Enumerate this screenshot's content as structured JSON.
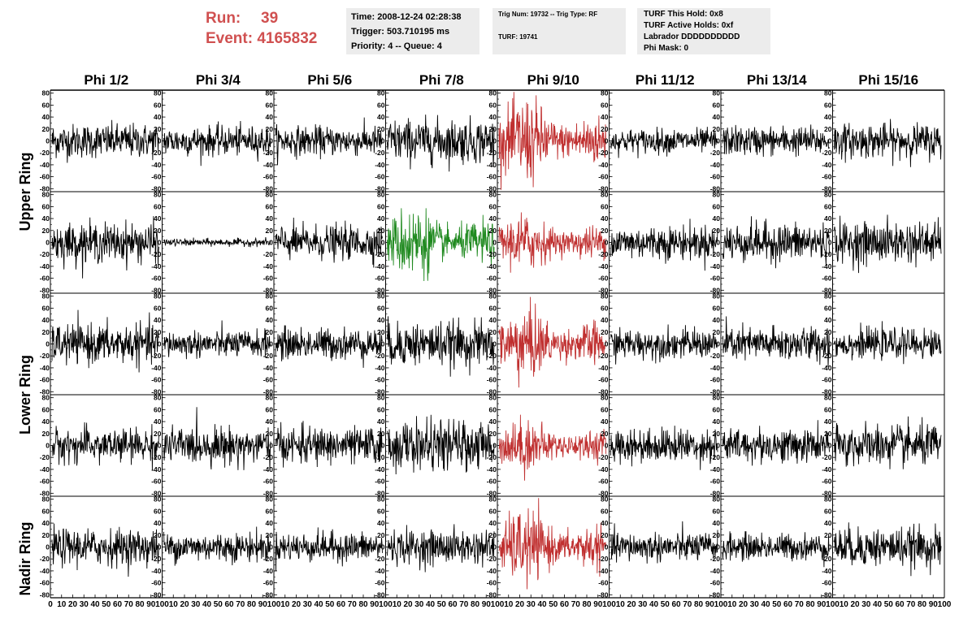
{
  "header": {
    "run_label": "Run:",
    "run_value": "39",
    "event_label": "Event:",
    "event_value": "4165832",
    "info_box_1": [
      "Time: 2008-12-24 02:28:38",
      "Trigger: 503.710195 ms",
      "Priority: 4 -- Queue: 4"
    ],
    "info_box_2": [
      "Trig Num: 19732 -- Trig Type: RF",
      "TURF: 19741"
    ],
    "info_box_3": [
      "TURF This Hold: 0x8",
      "TURF Active Holds: 0xf",
      "Labrador DDDDDDDDDD",
      "Phi Mask: 0"
    ]
  },
  "colors": {
    "run_text": "#d05050",
    "info_box_bg": "#ececec",
    "trace_normal": "#000000",
    "trace_triggered": "#c03030",
    "trace_highlight": "#208a20"
  },
  "chart_data": {
    "type": "line",
    "columns": [
      "Phi 1/2",
      "Phi 3/4",
      "Phi 5/6",
      "Phi 7/8",
      "Phi 9/10",
      "Phi 11/12",
      "Phi 13/14",
      "Phi 15/16"
    ],
    "ring_labels": [
      "Upper Ring",
      "Lower Ring",
      "Nadir Ring"
    ],
    "ylim": [
      -85,
      85
    ],
    "yticks": [
      -80,
      -60,
      -40,
      -20,
      0,
      20,
      40,
      60,
      80
    ],
    "xlim": [
      0,
      100
    ],
    "xticks": [
      0,
      10,
      20,
      30,
      40,
      50,
      60,
      70,
      80,
      90,
      100
    ],
    "n_samples": 260,
    "panels": [
      [
        {
          "color": "black",
          "amp": 14
        },
        {
          "color": "black",
          "amp": 12
        },
        {
          "color": "black",
          "amp": 12
        },
        {
          "color": "black",
          "amp": 18
        },
        {
          "color": "red",
          "amp": 26
        },
        {
          "color": "black",
          "amp": 10
        },
        {
          "color": "black",
          "amp": 12
        },
        {
          "color": "black",
          "amp": 14
        }
      ],
      [
        {
          "color": "black",
          "amp": 16
        },
        {
          "color": "black",
          "amp": 3
        },
        {
          "color": "black",
          "amp": 14
        },
        {
          "color": "green",
          "amp": 22
        },
        {
          "color": "red",
          "amp": 17
        },
        {
          "color": "black",
          "amp": 14
        },
        {
          "color": "black",
          "amp": 16
        },
        {
          "color": "black",
          "amp": 17
        }
      ],
      [
        {
          "color": "black",
          "amp": 16
        },
        {
          "color": "black",
          "amp": 11
        },
        {
          "color": "black",
          "amp": 13
        },
        {
          "color": "black",
          "amp": 18
        },
        {
          "color": "red",
          "amp": 22
        },
        {
          "color": "black",
          "amp": 12
        },
        {
          "color": "black",
          "amp": 14
        },
        {
          "color": "black",
          "amp": 12
        }
      ],
      [
        {
          "color": "black",
          "amp": 14
        },
        {
          "color": "black",
          "amp": 15
        },
        {
          "color": "black",
          "amp": 15
        },
        {
          "color": "black",
          "amp": 20
        },
        {
          "color": "red",
          "amp": 16
        },
        {
          "color": "black",
          "amp": 14
        },
        {
          "color": "black",
          "amp": 14
        },
        {
          "color": "black",
          "amp": 17
        }
      ],
      [
        {
          "color": "black",
          "amp": 15
        },
        {
          "color": "black",
          "amp": 12
        },
        {
          "color": "black",
          "amp": 12
        },
        {
          "color": "black",
          "amp": 14
        },
        {
          "color": "red",
          "amp": 22
        },
        {
          "color": "black",
          "amp": 12
        },
        {
          "color": "black",
          "amp": 11
        },
        {
          "color": "black",
          "amp": 16
        }
      ]
    ]
  }
}
